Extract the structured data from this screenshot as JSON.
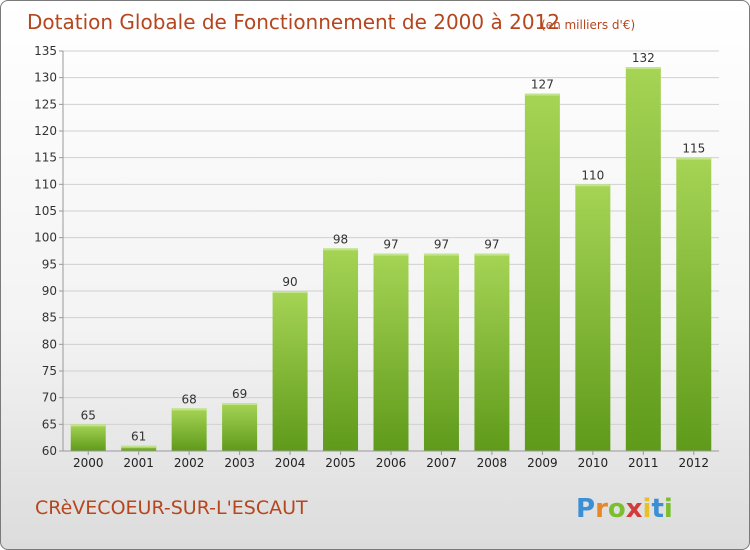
{
  "chart_data": {
    "type": "bar",
    "title": "Dotation Globale de Fonctionnement de 2000 à 2012",
    "subtitle": "(en milliers d'€)",
    "categories": [
      "2000",
      "2001",
      "2002",
      "2003",
      "2004",
      "2005",
      "2006",
      "2007",
      "2008",
      "2009",
      "2010",
      "2011",
      "2012"
    ],
    "values": [
      65,
      61,
      68,
      69,
      90,
      98,
      97,
      97,
      97,
      127,
      110,
      132,
      115
    ],
    "ylim": [
      60,
      135
    ],
    "yticks": [
      60,
      65,
      70,
      75,
      80,
      85,
      90,
      95,
      100,
      105,
      110,
      115,
      120,
      125,
      130,
      135
    ],
    "grid": true,
    "bar_color": "#7dbb2f",
    "bar_color_light": "#a6d455",
    "bar_color_dark": "#5f9a1a"
  },
  "footer": {
    "town": "CRèVECOEUR-SUR-L'ESCAUT",
    "logo_text": "Proxiti"
  }
}
